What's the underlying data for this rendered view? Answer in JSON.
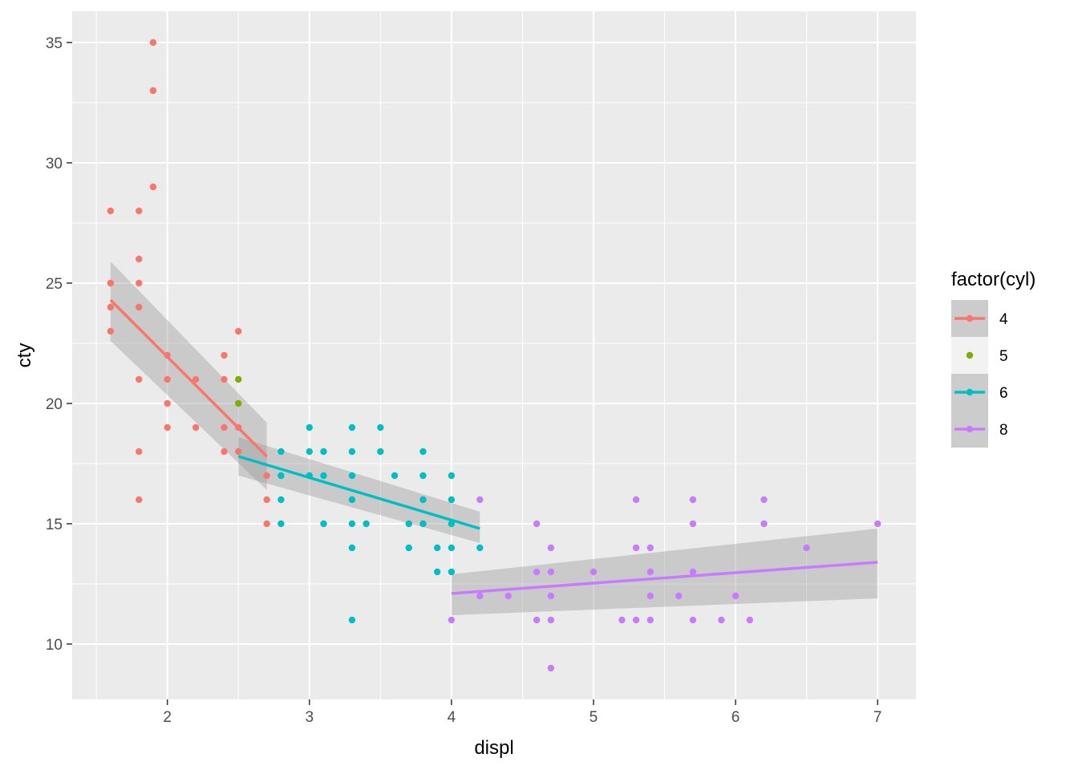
{
  "chart_data": {
    "type": "scatter",
    "xlabel": "displ",
    "ylabel": "cty",
    "xlim": [
      1.33,
      7.27
    ],
    "ylim": [
      7.7,
      36.3
    ],
    "x_ticks": [
      2,
      3,
      4,
      5,
      6,
      7
    ],
    "x_tick_labels": [
      "2",
      "3",
      "4",
      "5",
      "6",
      "7"
    ],
    "y_ticks": [
      10,
      15,
      20,
      25,
      30,
      35
    ],
    "y_tick_labels": [
      "10",
      "15",
      "20",
      "25",
      "30",
      "35"
    ],
    "grid": true,
    "background": "#EBEBEB",
    "legend": {
      "title": "factor(cyl)",
      "position": "right"
    },
    "series": [
      {
        "name": "4",
        "color": "#F8766D",
        "points": [
          [
            1.6,
            28
          ],
          [
            1.6,
            25
          ],
          [
            1.6,
            24
          ],
          [
            1.6,
            23
          ],
          [
            1.8,
            28
          ],
          [
            1.8,
            26
          ],
          [
            1.8,
            25
          ],
          [
            1.8,
            24
          ],
          [
            1.8,
            21
          ],
          [
            1.8,
            18
          ],
          [
            1.8,
            16
          ],
          [
            1.9,
            35
          ],
          [
            1.9,
            33
          ],
          [
            1.9,
            29
          ],
          [
            2.0,
            22
          ],
          [
            2.0,
            21
          ],
          [
            2.0,
            20
          ],
          [
            2.0,
            19
          ],
          [
            2.2,
            21
          ],
          [
            2.2,
            19
          ],
          [
            2.4,
            22
          ],
          [
            2.4,
            21
          ],
          [
            2.4,
            19
          ],
          [
            2.4,
            18
          ],
          [
            2.5,
            23
          ],
          [
            2.5,
            19
          ],
          [
            2.5,
            18
          ],
          [
            2.7,
            17
          ],
          [
            2.7,
            16
          ],
          [
            2.7,
            15
          ]
        ],
        "smooth": {
          "x": [
            1.6,
            2.7
          ],
          "y": [
            24.3,
            17.8
          ],
          "se_low": [
            22.6,
            16.4
          ],
          "se_high": [
            25.9,
            19.2
          ]
        }
      },
      {
        "name": "5",
        "color": "#7CAE00",
        "points": [
          [
            2.5,
            21
          ],
          [
            2.5,
            20
          ]
        ]
      },
      {
        "name": "6",
        "color": "#00BFC4",
        "points": [
          [
            2.8,
            18
          ],
          [
            2.8,
            17
          ],
          [
            2.8,
            16
          ],
          [
            2.8,
            15
          ],
          [
            3.0,
            19
          ],
          [
            3.0,
            18
          ],
          [
            3.0,
            17
          ],
          [
            3.1,
            18
          ],
          [
            3.1,
            17
          ],
          [
            3.1,
            15
          ],
          [
            3.3,
            19
          ],
          [
            3.3,
            18
          ],
          [
            3.3,
            17
          ],
          [
            3.3,
            16
          ],
          [
            3.3,
            15
          ],
          [
            3.3,
            14
          ],
          [
            3.3,
            11
          ],
          [
            3.4,
            15
          ],
          [
            3.5,
            19
          ],
          [
            3.5,
            18
          ],
          [
            3.6,
            17
          ],
          [
            3.7,
            15
          ],
          [
            3.7,
            14
          ],
          [
            3.8,
            18
          ],
          [
            3.8,
            17
          ],
          [
            3.8,
            16
          ],
          [
            3.8,
            15
          ],
          [
            3.9,
            14
          ],
          [
            3.9,
            13
          ],
          [
            4.0,
            17
          ],
          [
            4.0,
            16
          ],
          [
            4.0,
            15
          ],
          [
            4.0,
            14
          ],
          [
            4.0,
            13
          ],
          [
            4.2,
            14
          ]
        ],
        "smooth": {
          "x": [
            2.5,
            4.2
          ],
          "y": [
            17.8,
            14.8
          ],
          "se_low": [
            17.0,
            14.2
          ],
          "se_high": [
            18.6,
            15.5
          ]
        }
      },
      {
        "name": "8",
        "color": "#C77CFF",
        "points": [
          [
            4.0,
            11
          ],
          [
            4.2,
            16
          ],
          [
            4.2,
            12
          ],
          [
            4.4,
            12
          ],
          [
            4.6,
            15
          ],
          [
            4.6,
            13
          ],
          [
            4.6,
            11
          ],
          [
            4.7,
            14
          ],
          [
            4.7,
            13
          ],
          [
            4.7,
            12
          ],
          [
            4.7,
            11
          ],
          [
            4.7,
            9
          ],
          [
            5.0,
            13
          ],
          [
            5.2,
            11
          ],
          [
            5.3,
            16
          ],
          [
            5.3,
            14
          ],
          [
            5.3,
            11
          ],
          [
            5.4,
            14
          ],
          [
            5.4,
            13
          ],
          [
            5.4,
            12
          ],
          [
            5.4,
            11
          ],
          [
            5.6,
            12
          ],
          [
            5.7,
            16
          ],
          [
            5.7,
            15
          ],
          [
            5.7,
            13
          ],
          [
            5.7,
            11
          ],
          [
            5.9,
            11
          ],
          [
            6.0,
            12
          ],
          [
            6.1,
            11
          ],
          [
            6.2,
            16
          ],
          [
            6.2,
            15
          ],
          [
            6.5,
            14
          ],
          [
            7.0,
            15
          ]
        ],
        "smooth": {
          "x": [
            4.0,
            7.0
          ],
          "y": [
            12.1,
            13.4
          ],
          "se_low": [
            11.2,
            11.9
          ],
          "se_high": [
            12.9,
            14.8
          ]
        }
      }
    ]
  }
}
